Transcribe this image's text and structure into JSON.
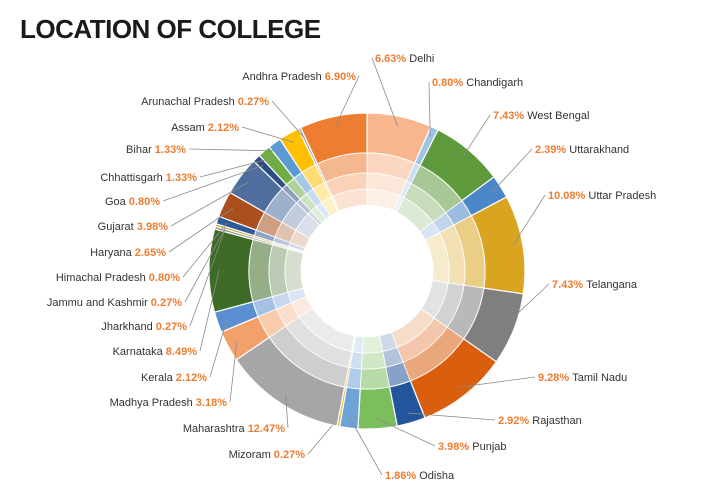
{
  "title": "LOCATION OF COLLEGE",
  "chart_data": {
    "type": "pie",
    "subtype": "doughnut",
    "title": "LOCATION OF COLLEGE",
    "slices": [
      {
        "label": "Delhi",
        "pct": "6.63%",
        "value": 6.63,
        "color": "#F8B68F"
      },
      {
        "label": "Chandigarh",
        "pct": "0.80%",
        "value": 0.8,
        "color": "#9DC3E6"
      },
      {
        "label": "West Bengal",
        "pct": "7.43%",
        "value": 7.43,
        "color": "#5E9A3C"
      },
      {
        "label": "Uttarakhand",
        "pct": "2.39%",
        "value": 2.39,
        "color": "#4A86C8"
      },
      {
        "label": "Uttar Pradesh",
        "pct": "10.08%",
        "value": 10.08,
        "color": "#D9A521"
      },
      {
        "label": "Telangana",
        "pct": "7.43%",
        "value": 7.43,
        "color": "#7F7F7F"
      },
      {
        "label": "Tamil Nadu",
        "pct": "9.28%",
        "value": 9.28,
        "color": "#D95F0E"
      },
      {
        "label": "Rajasthan",
        "pct": "2.92%",
        "value": 2.92,
        "color": "#22559C"
      },
      {
        "label": "Punjab",
        "pct": "3.98%",
        "value": 3.98,
        "color": "#7BBE5D"
      },
      {
        "label": "Odisha",
        "pct": "1.86%",
        "value": 1.86,
        "color": "#6FA3D6"
      },
      {
        "label": "Mizoram",
        "pct": "0.27%",
        "value": 0.27,
        "color": "#E5B82E"
      },
      {
        "label": "Maharashtra",
        "pct": "12.47%",
        "value": 12.47,
        "color": "#A6A6A6"
      },
      {
        "label": "Madhya Pradesh",
        "pct": "3.18%",
        "value": 3.18,
        "color": "#F4A06A"
      },
      {
        "label": "Kerala",
        "pct": "2.12%",
        "value": 2.12,
        "color": "#5B8FD1"
      },
      {
        "label": "Karnataka",
        "pct": "8.49%",
        "value": 8.49,
        "color": "#3E6B26"
      },
      {
        "label": "Jharkhand",
        "pct": "0.27%",
        "value": 0.27,
        "color": "#8C8C8C"
      },
      {
        "label": "Jammu and Kashmir",
        "pct": "0.27%",
        "value": 0.27,
        "color": "#C8A233"
      },
      {
        "label": "Himachal Pradesh",
        "pct": "0.80%",
        "value": 0.8,
        "color": "#2E5C99"
      },
      {
        "label": "Haryana",
        "pct": "2.65%",
        "value": 2.65,
        "color": "#A94E1C"
      },
      {
        "label": "Gujarat",
        "pct": "3.98%",
        "value": 3.98,
        "color": "#4F6E9E"
      },
      {
        "label": "Goa",
        "pct": "0.80%",
        "value": 0.8,
        "color": "#2F4C85"
      },
      {
        "label": "Chhattisgarh",
        "pct": "1.33%",
        "value": 1.33,
        "color": "#70AD47"
      },
      {
        "label": "Bihar",
        "pct": "1.33%",
        "value": 1.33,
        "color": "#5B9BD5"
      },
      {
        "label": "Assam",
        "pct": "2.12%",
        "value": 2.12,
        "color": "#FFC000"
      },
      {
        "label": "Arunachal Pradesh",
        "pct": "0.27%",
        "value": 0.27,
        "color": "#A5A5A5"
      },
      {
        "label": "Andhra Pradesh",
        "pct": "6.90%",
        "value": 6.9,
        "color": "#ED7D31"
      }
    ],
    "legend": "none",
    "labels": "outside with leader lines"
  }
}
